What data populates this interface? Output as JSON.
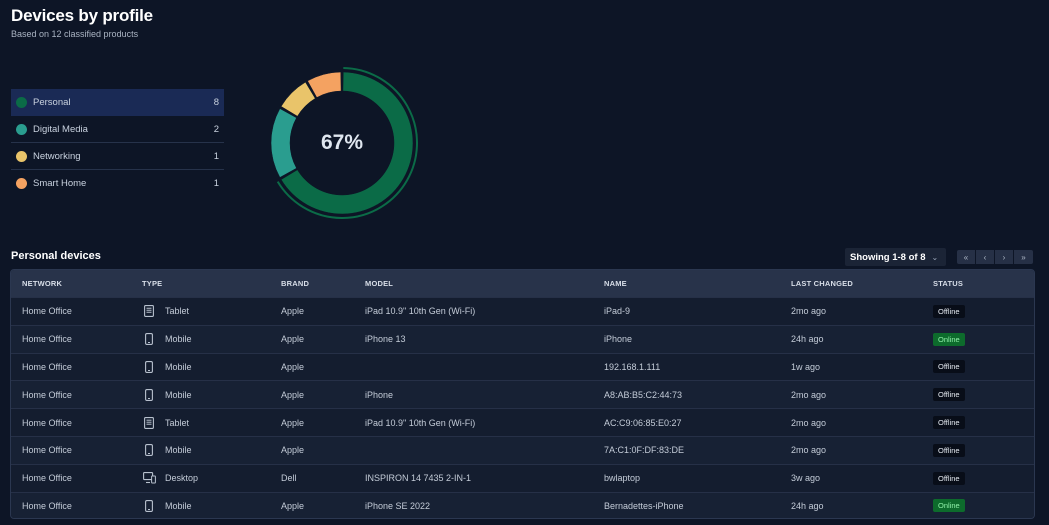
{
  "header": {
    "title": "Devices by profile",
    "subtitle": "Based on 12 classified products"
  },
  "colors": {
    "personal": "#0b6b47",
    "digital_media": "#2a9d8f",
    "networking": "#e9c46a",
    "smart_home": "#f4a261",
    "online": "#0d6b2c"
  },
  "legend": [
    {
      "label": "Personal",
      "count": "8",
      "color": "#0b6b47"
    },
    {
      "label": "Digital Media",
      "count": "2",
      "color": "#2a9d8f"
    },
    {
      "label": "Networking",
      "count": "1",
      "color": "#e9c46a"
    },
    {
      "label": "Smart Home",
      "count": "1",
      "color": "#f4a261"
    }
  ],
  "chart_data": {
    "type": "pie",
    "categories": [
      "Personal",
      "Digital Media",
      "Networking",
      "Smart Home"
    ],
    "values": [
      8,
      2,
      1,
      1
    ],
    "center_label": "67%"
  },
  "table": {
    "title": "Personal devices",
    "showing": "Showing 1-8 of 8",
    "pager": [
      "«",
      "‹",
      "›",
      "»"
    ],
    "columns": [
      "NETWORK",
      "TYPE",
      "BRAND",
      "MODEL",
      "NAME",
      "LAST CHANGED",
      "STATUS"
    ],
    "rows": [
      {
        "network": "Home Office",
        "type": "Tablet",
        "icon": "tablet-icon",
        "brand": "Apple",
        "model": "iPad 10.9\" 10th Gen (Wi-Fi)",
        "name": "iPad-9",
        "last_changed": "2mo ago",
        "status": "Offline"
      },
      {
        "network": "Home Office",
        "type": "Mobile",
        "icon": "mobile-icon",
        "brand": "Apple",
        "model": "iPhone 13",
        "name": "iPhone",
        "last_changed": "24h ago",
        "status": "Online"
      },
      {
        "network": "Home Office",
        "type": "Mobile",
        "icon": "mobile-icon",
        "brand": "Apple",
        "model": "",
        "name": "192.168.1.111",
        "last_changed": "1w ago",
        "status": "Offline"
      },
      {
        "network": "Home Office",
        "type": "Mobile",
        "icon": "mobile-icon",
        "brand": "Apple",
        "model": "iPhone",
        "name": "A8:AB:B5:C2:44:73",
        "last_changed": "2mo ago",
        "status": "Offline"
      },
      {
        "network": "Home Office",
        "type": "Tablet",
        "icon": "tablet-icon",
        "brand": "Apple",
        "model": "iPad 10.9\" 10th Gen (Wi-Fi)",
        "name": "AC:C9:06:85:E0:27",
        "last_changed": "2mo ago",
        "status": "Offline"
      },
      {
        "network": "Home Office",
        "type": "Mobile",
        "icon": "mobile-icon",
        "brand": "Apple",
        "model": "",
        "name": "7A:C1:0F:DF:83:DE",
        "last_changed": "2mo ago",
        "status": "Offline"
      },
      {
        "network": "Home Office",
        "type": "Desktop",
        "icon": "desktop-icon",
        "brand": "Dell",
        "model": "INSPIRON 14 7435 2-IN-1",
        "name": "bwlaptop",
        "last_changed": "3w ago",
        "status": "Offline"
      },
      {
        "network": "Home Office",
        "type": "Mobile",
        "icon": "mobile-icon",
        "brand": "Apple",
        "model": "iPhone SE 2022",
        "name": "Bernadettes-iPhone",
        "last_changed": "24h ago",
        "status": "Online"
      }
    ]
  }
}
